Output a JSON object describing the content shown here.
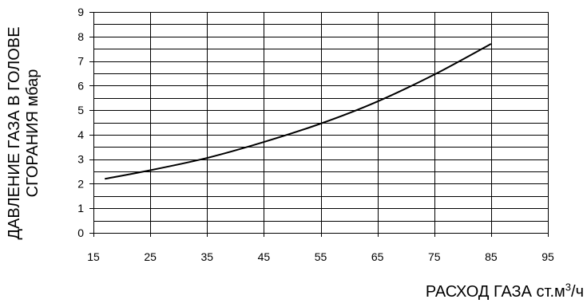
{
  "chart_data": {
    "type": "line",
    "ylabel_lines": [
      "ДАВЛЕНИЕ ГАЗА В ГОЛОВЕ",
      "СГОРАНИЯ мбар"
    ],
    "xlabel": {
      "text": "РАСХОД ГАЗА ст.м",
      "sup": "3",
      "suffix": "/ч"
    },
    "xlim": [
      15,
      95
    ],
    "ylim": [
      0,
      9
    ],
    "x_ticks": [
      15,
      25,
      35,
      45,
      55,
      65,
      75,
      85,
      95
    ],
    "y_ticks": [
      0,
      1,
      2,
      3,
      4,
      5,
      6,
      7,
      8,
      9
    ],
    "grid": true,
    "grid_y_step": 0.5,
    "series": [
      {
        "color": "#000000",
        "x": [
          17,
          25,
          35,
          45,
          55,
          65,
          75,
          85
        ],
        "y": [
          2.2,
          2.55,
          3.05,
          3.7,
          4.45,
          5.35,
          6.45,
          7.7
        ]
      }
    ]
  }
}
